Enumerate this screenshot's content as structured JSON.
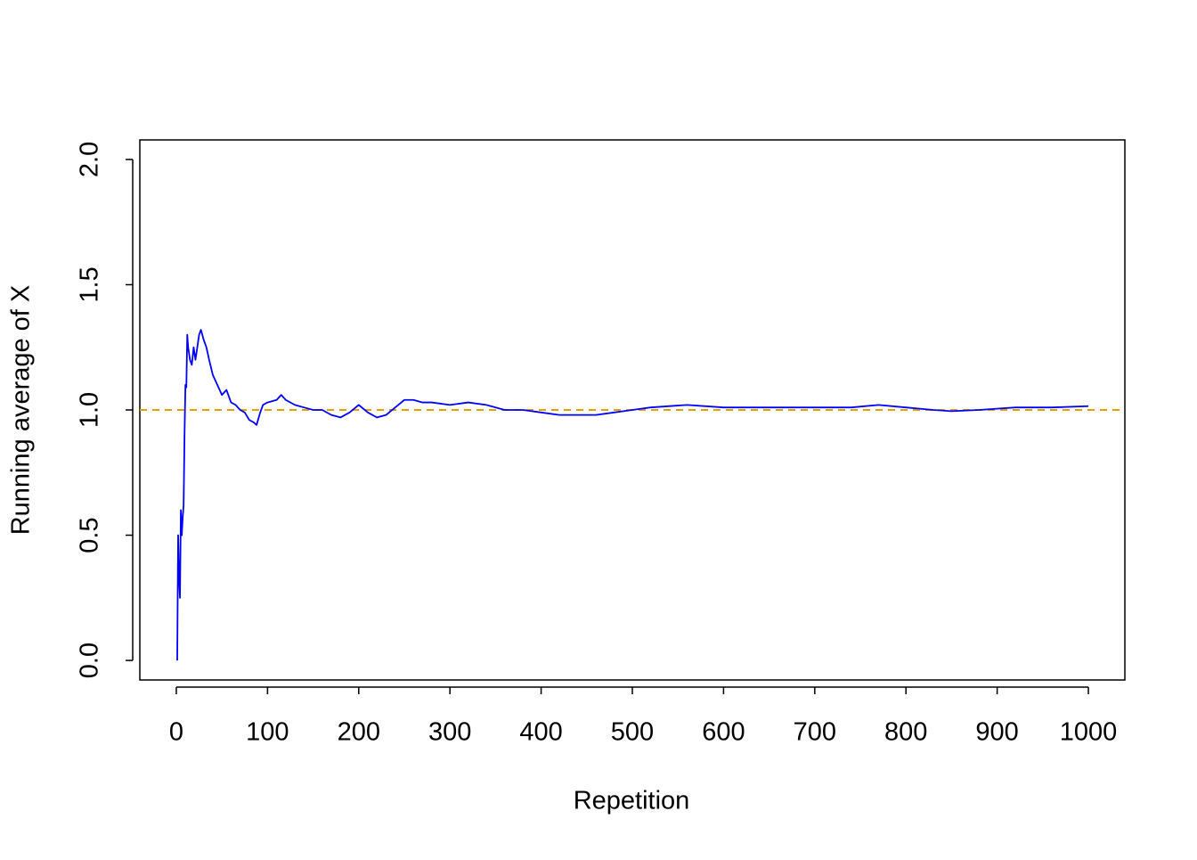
{
  "chart_data": {
    "type": "line",
    "x_label": "Repetition",
    "y_label": "Running average of X",
    "x": [
      1,
      2,
      3,
      4,
      5,
      6,
      7,
      8,
      9,
      10,
      11,
      12,
      13,
      15,
      17,
      19,
      21,
      23,
      25,
      27,
      30,
      33,
      36,
      40,
      45,
      50,
      55,
      60,
      65,
      70,
      75,
      80,
      85,
      88,
      92,
      95,
      100,
      110,
      115,
      120,
      130,
      140,
      150,
      160,
      170,
      180,
      190,
      200,
      210,
      220,
      230,
      240,
      250,
      260,
      270,
      280,
      300,
      320,
      340,
      360,
      380,
      400,
      420,
      440,
      460,
      480,
      500,
      520,
      560,
      600,
      650,
      700,
      740,
      770,
      800,
      830,
      850,
      880,
      920,
      960,
      1000
    ],
    "series": [
      {
        "color": "#0000ff",
        "values": [
          0,
          0.5,
          0.33,
          0.25,
          0.6,
          0.5,
          0.57,
          0.62,
          0.9,
          1.1,
          1.09,
          1.3,
          1.25,
          1.2,
          1.18,
          1.25,
          1.2,
          1.25,
          1.3,
          1.32,
          1.28,
          1.25,
          1.2,
          1.14,
          1.1,
          1.06,
          1.08,
          1.03,
          1.02,
          1.0,
          0.99,
          0.96,
          0.95,
          0.94,
          0.99,
          1.02,
          1.03,
          1.04,
          1.06,
          1.04,
          1.02,
          1.01,
          1.0,
          1.0,
          0.98,
          0.97,
          0.99,
          1.02,
          0.99,
          0.97,
          0.98,
          1.01,
          1.04,
          1.04,
          1.03,
          1.03,
          1.02,
          1.03,
          1.02,
          1.0,
          1.0,
          0.99,
          0.98,
          0.98,
          0.98,
          0.99,
          1.0,
          1.01,
          1.02,
          1.01,
          1.01,
          1.01,
          1.01,
          1.02,
          1.01,
          1.0,
          0.995,
          1.0,
          1.01,
          1.01,
          1.015
        ]
      }
    ],
    "reference_line": {
      "value": 1,
      "color": "#E69F00"
    },
    "xlim": [
      -40,
      1040
    ],
    "ylim": [
      -0.078,
      2.078
    ],
    "xticks": [
      0,
      100,
      200,
      300,
      400,
      500,
      600,
      700,
      800,
      900,
      1000
    ],
    "yticks": [
      {
        "value": 0,
        "label": "0.0"
      },
      0.5,
      {
        "value": 1,
        "label": "1.0"
      },
      1.5,
      {
        "value": 2,
        "label": "2.0"
      }
    ]
  }
}
